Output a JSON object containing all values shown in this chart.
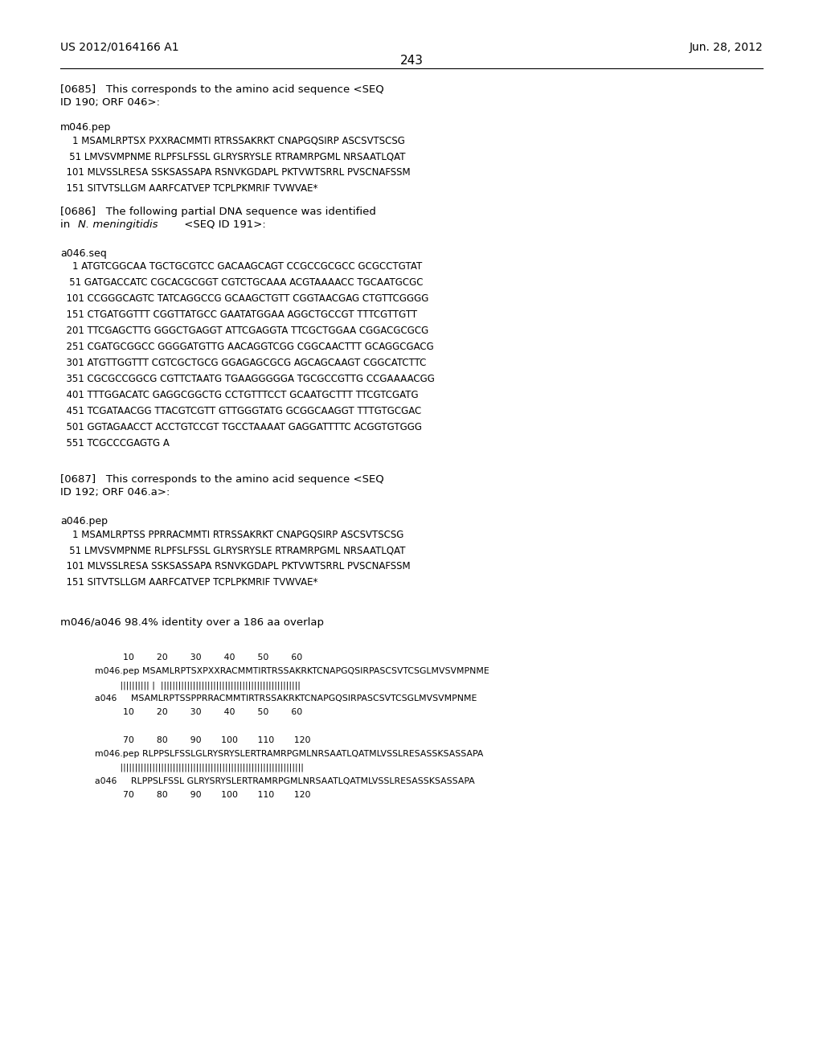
{
  "header_left": "US 2012/0164166 A1",
  "header_right": "Jun. 28, 2012",
  "page_number": "243",
  "background_color": "#ffffff",
  "text_color": "#000000",
  "align_block1_ruler": "          10        20        30        40        50        60",
  "align_block1_seq1": "m046.pep MSAMLRPTSXPXXRACMMTIRTRSSAKRKTCNAPGQSIRPASCSVTCSGLMVSVMPNME",
  "align_block1_match": "         |||||||||| |  ||||||||||||||||||||||||||||||||||||||||||||",
  "align_block1_seq2": "a046     MSAMLRPTSSPPRRACMMTIRTRSSAKRKTCNAPGQSIRPASCSVTCSGLMVSVMPNME",
  "align_block1_ruler2": "          10        20        30        40        50        60",
  "align_block2_ruler": "          70        80        90       100       110       120",
  "align_block2_seq1": "m046.pep RLPPSLFSSLGLRYSRYSLERTRAMRPGMLNRSAATLQATMLVSSLRESASSKSASSAPA",
  "align_block2_match": "         |||||||||||||||||||||||||||||||||||||||||||||||||||||||||||",
  "align_block2_seq2": "a046     RLPPSLFSSL GLRYSRYSLERTRAMRPGMLNRSAATLQATMLVSSLRESASSKSASSAPA",
  "align_block2_ruler2": "          70        80        90       100       110       120"
}
